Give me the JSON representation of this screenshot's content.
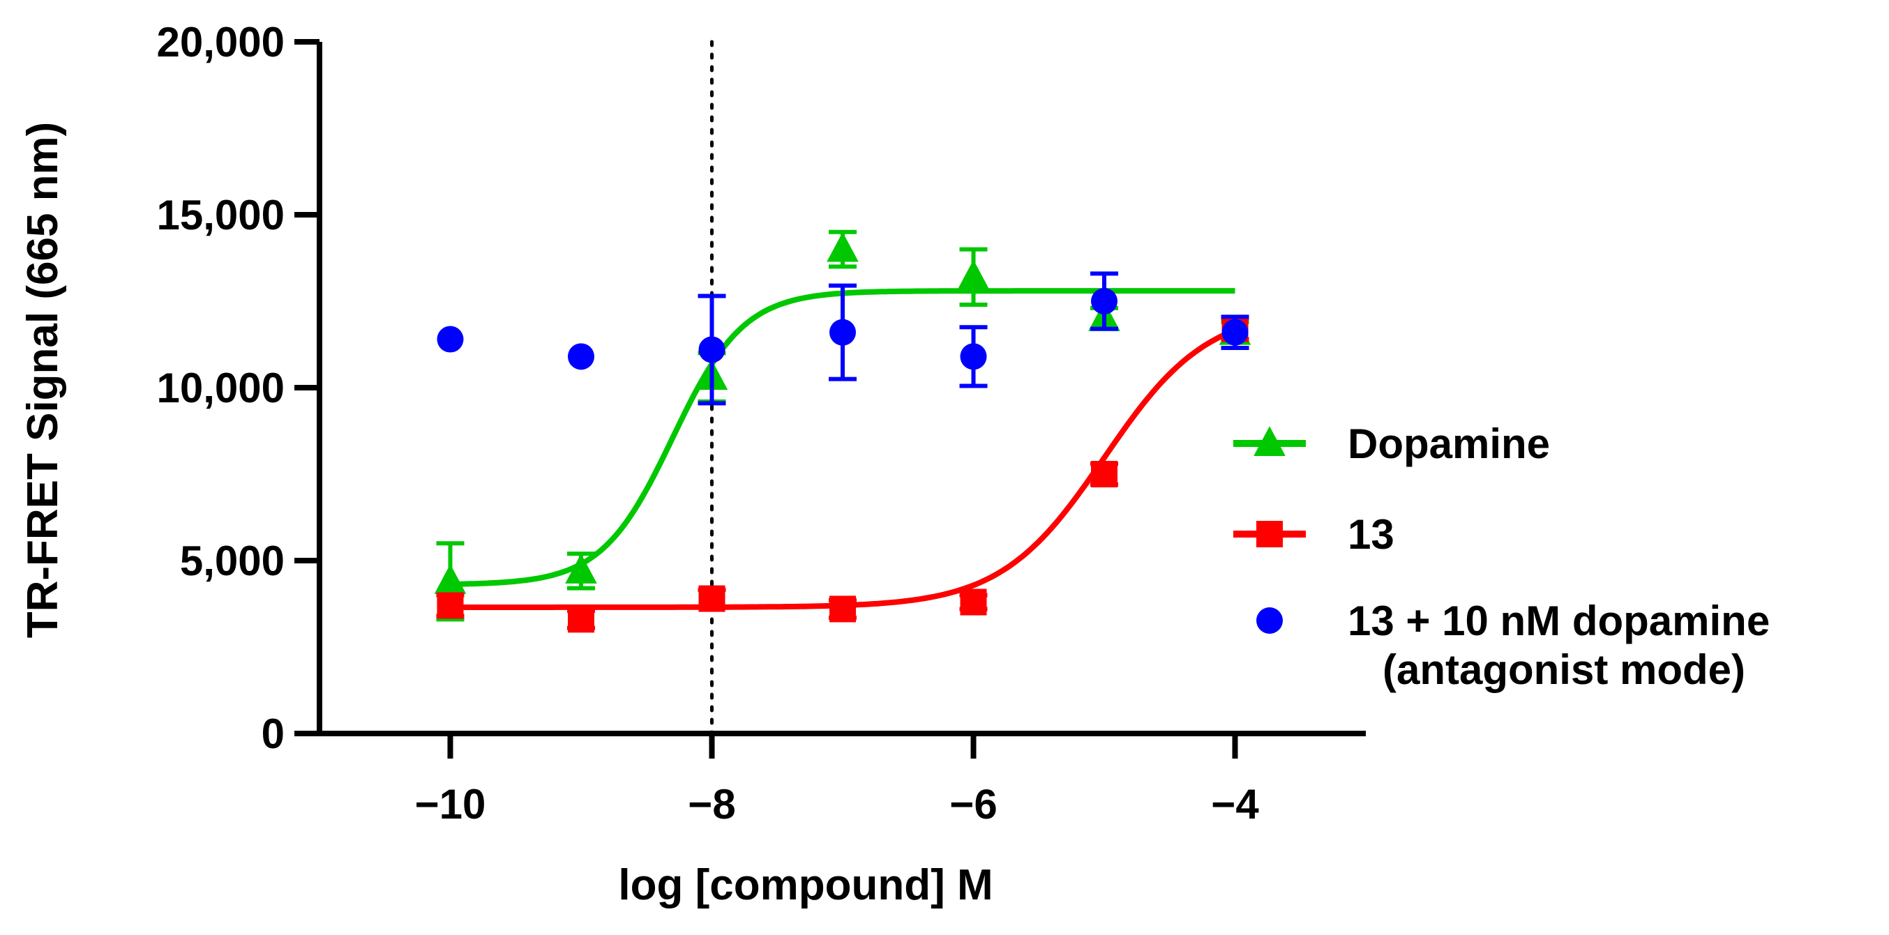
{
  "chart_data": {
    "type": "scatter",
    "title": "",
    "xlabel": "log [compound] M",
    "ylabel": "TR-FRET Signal (665 nm)",
    "xlim": [
      -11,
      -3
    ],
    "ylim": [
      0,
      20000
    ],
    "xticks": [
      -10,
      -8,
      -6,
      -4
    ],
    "xtick_labels": [
      "−10",
      "−8",
      "−6",
      "−4"
    ],
    "yticks": [
      0,
      5000,
      10000,
      15000,
      20000
    ],
    "ytick_labels": [
      "0",
      "5,000",
      "10,000",
      "15,000",
      "20,000"
    ],
    "grid": false,
    "legend_position": "right",
    "reference_line": {
      "x": -8,
      "style": "dotted"
    },
    "series": [
      {
        "name": "Dopamine",
        "color": "#00c800",
        "marker": "triangle",
        "x": [
          -10,
          -9,
          -8,
          -7,
          -6,
          -5,
          -4
        ],
        "y": [
          4400,
          4700,
          10300,
          14000,
          13200,
          12000,
          11600
        ],
        "err": [
          1100,
          500,
          700,
          500,
          800,
          300,
          300
        ],
        "fit": {
          "bottom": 4300,
          "top": 12800,
          "logEC50": -8.3,
          "hill": 1.6,
          "xrange": [
            -10,
            -4
          ]
        }
      },
      {
        "name": "13",
        "color": "#ff0000",
        "marker": "square",
        "x": [
          -10,
          -9,
          -8,
          -7,
          -6,
          -5,
          -4
        ],
        "y": [
          3700,
          3300,
          3900,
          3600,
          3800,
          7500,
          11700
        ],
        "err": [
          300,
          250,
          250,
          250,
          200,
          300,
          300
        ],
        "fit": {
          "bottom": 3650,
          "top": 12300,
          "logEC50": -5.0,
          "hill": 1.1,
          "xrange": [
            -10,
            -4
          ]
        }
      },
      {
        "name": "13 + 10 nM dopamine",
        "name_line2": "(antagonist mode)",
        "color": "#0000ff",
        "marker": "circle",
        "x": [
          -10,
          -9,
          -8,
          -7,
          -6,
          -5,
          -4
        ],
        "y": [
          11400,
          10900,
          11100,
          11600,
          10900,
          12500,
          11600
        ],
        "err": [
          0,
          0,
          1550,
          1350,
          850,
          800,
          450
        ]
      }
    ]
  }
}
